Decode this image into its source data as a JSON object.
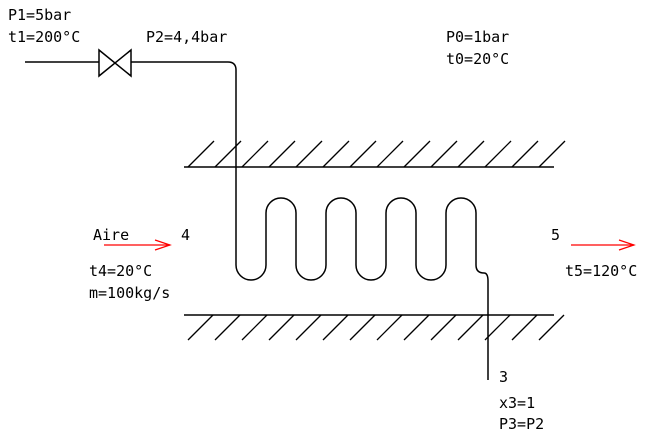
{
  "inlet": {
    "p1": "P1=5bar",
    "t1": "t1=200°C"
  },
  "after_valve": {
    "p2": "P2=4,4bar"
  },
  "ambient": {
    "p0": "P0=1bar",
    "t0": "t0=20°C"
  },
  "air_in": {
    "name": "Aire",
    "point": "4",
    "temp": "t4=20°C",
    "flow": "m=100kg/s"
  },
  "air_out": {
    "point": "5",
    "temp": "t5=120°C"
  },
  "outlet": {
    "point": "3",
    "quality": "x3=1",
    "pressure": "P3=P2"
  },
  "colors": {
    "lines": "#000000",
    "air_arrows": "#ff0000"
  }
}
